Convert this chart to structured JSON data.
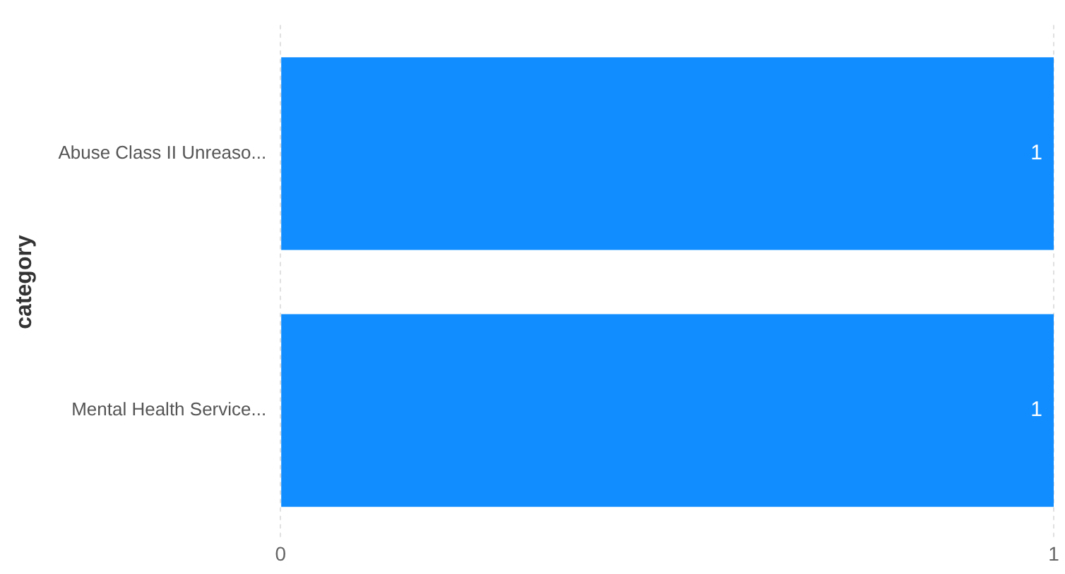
{
  "chart_data": {
    "type": "bar",
    "orientation": "horizontal",
    "ylabel": "category",
    "categories": [
      "Abuse Class II Unreaso...",
      "Mental Health Service..."
    ],
    "values": [
      1,
      1
    ],
    "color": "#118dff",
    "xlim": [
      0,
      1
    ],
    "xticks": [
      0,
      1
    ],
    "grid": "x",
    "data_labels": true,
    "legend": false
  }
}
